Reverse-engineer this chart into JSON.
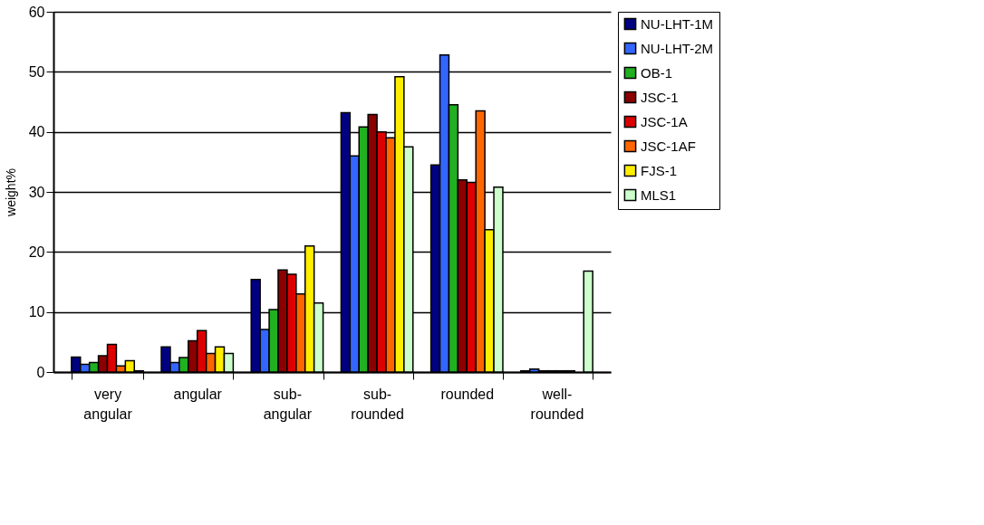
{
  "chart_data": {
    "type": "bar",
    "ylabel": "weight%",
    "categories": [
      "very angular",
      "angular",
      "sub-angular",
      "sub-rounded",
      "rounded",
      "well-rounded"
    ],
    "series": [
      {
        "name": "NU-LHT-1M",
        "color": "#000080",
        "values": [
          2.5,
          4.2,
          15.4,
          43.2,
          34.5,
          0.2
        ]
      },
      {
        "name": "NU-LHT-2M",
        "color": "#3366ff",
        "values": [
          1.3,
          1.6,
          7.1,
          36.0,
          52.8,
          0.5
        ]
      },
      {
        "name": "OB-1",
        "color": "#20b020",
        "values": [
          1.6,
          2.4,
          10.4,
          40.8,
          44.5,
          0.2
        ]
      },
      {
        "name": "JSC-1",
        "color": "#8b0000",
        "values": [
          2.7,
          5.2,
          17.0,
          42.9,
          32.0,
          0.2
        ]
      },
      {
        "name": "JSC-1A",
        "color": "#dd0000",
        "values": [
          4.6,
          6.9,
          16.3,
          40.0,
          31.6,
          0.2
        ]
      },
      {
        "name": "JSC-1AF",
        "color": "#ff6600",
        "values": [
          1.0,
          3.1,
          13.0,
          39.0,
          43.5,
          0.2
        ]
      },
      {
        "name": "FJS-1",
        "color": "#ffee00",
        "values": [
          1.9,
          4.2,
          21.0,
          49.2,
          23.7,
          null
        ]
      },
      {
        "name": "MLS1",
        "color": "#ccffcc",
        "values": [
          0.2,
          3.1,
          11.5,
          37.5,
          30.8,
          16.8
        ]
      }
    ],
    "ylim": [
      0,
      60
    ],
    "yticks": [
      0,
      10,
      20,
      30,
      40,
      50,
      60
    ],
    "grid": "y",
    "legend": "right"
  }
}
